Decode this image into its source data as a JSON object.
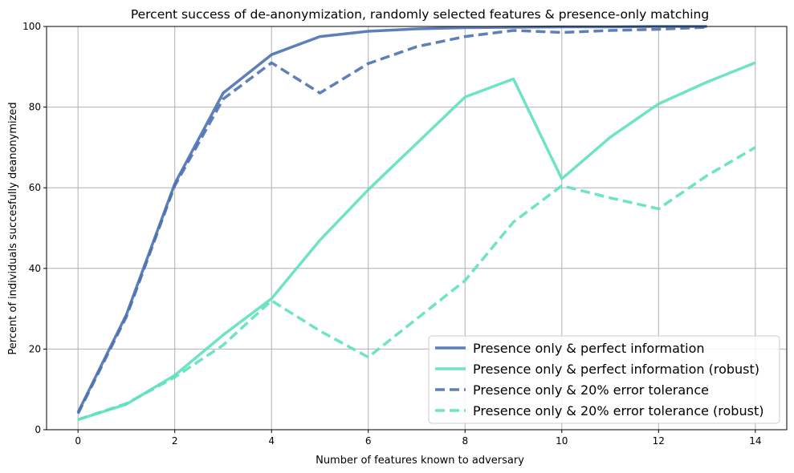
{
  "chart_data": {
    "type": "line",
    "title": "Percent success of de-anonymization, randomly selected features & presence-only matching",
    "xlabel": "Number of features known to adversary",
    "ylabel": "Percent of individuals succesfully deanonymized",
    "xlim": [
      -0.65,
      14.65
    ],
    "ylim": [
      0,
      100
    ],
    "xticks": [
      0,
      2,
      4,
      6,
      8,
      10,
      12,
      14
    ],
    "yticks": [
      0,
      20,
      40,
      60,
      80,
      100
    ],
    "grid": true,
    "legend_position": "lower right",
    "series": [
      {
        "name": "Presence only & perfect information",
        "color": "#4c72b0",
        "style": "solid",
        "x": [
          0,
          1,
          2,
          3,
          4,
          5,
          6,
          7,
          8,
          9,
          10,
          11,
          12,
          13
        ],
        "y": [
          4.3,
          28.5,
          61,
          83.5,
          93,
          97.5,
          98.8,
          99.4,
          99.7,
          99.8,
          99.9,
          99.9,
          100,
          100
        ]
      },
      {
        "name": "Presence only & perfect information (robust)",
        "color": "#5ee0c0",
        "style": "solid",
        "x": [
          0,
          1,
          2,
          3,
          4,
          5,
          6,
          7,
          8,
          9,
          10,
          11,
          12,
          13,
          14
        ],
        "y": [
          2.5,
          6.3,
          13.5,
          23.5,
          32.5,
          47,
          59.5,
          71,
          82.5,
          87,
          62.2,
          72.5,
          80.8,
          86.2,
          91
        ]
      },
      {
        "name": "Presence only & 20% error tolerance",
        "color": "#4c72b0",
        "style": "dashed",
        "x": [
          0,
          1,
          2,
          3,
          4,
          5,
          6,
          7,
          8,
          9,
          10,
          11,
          12,
          13
        ],
        "y": [
          4,
          28,
          60.5,
          82,
          91,
          83.5,
          90.8,
          95,
          97.5,
          99,
          98.5,
          99,
          99.3,
          99.8
        ]
      },
      {
        "name": "Presence only & 20% error tolerance (robust)",
        "color": "#5ee0c0",
        "style": "dashed",
        "x": [
          0,
          1,
          2,
          3,
          4,
          5,
          6,
          7,
          8,
          9,
          10,
          11,
          12,
          13,
          14
        ],
        "y": [
          2.5,
          6.5,
          13,
          21,
          32,
          24.5,
          18,
          27.5,
          37,
          51.5,
          60.5,
          57.5,
          54.8,
          63,
          70
        ]
      }
    ]
  }
}
